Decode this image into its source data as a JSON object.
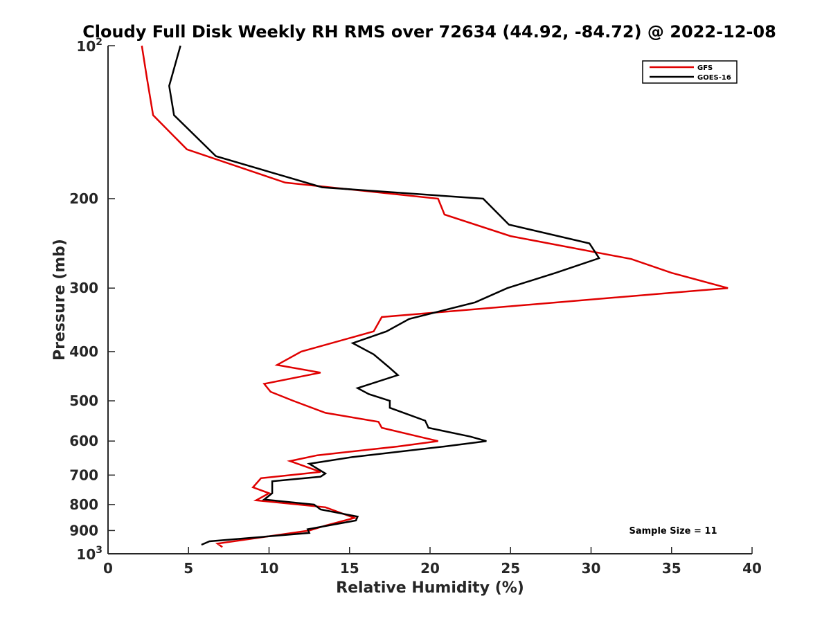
{
  "chart_data": {
    "type": "line",
    "title": "Cloudy Full Disk Weekly RH RMS over 72634 (44.92, -84.72) @ 2022-12-08",
    "xlabel": "Relative Humidity (%)",
    "ylabel": "Pressure (mb)",
    "xlim": [
      0,
      40
    ],
    "ylim": [
      100,
      1000
    ],
    "y_scale": "log",
    "y_reversed": true,
    "x_ticks": [
      "0",
      "5",
      "10",
      "15",
      "20",
      "25",
      "30",
      "35",
      "40"
    ],
    "y_ticks": [
      {
        "value": 100,
        "base": "10",
        "exp": "2"
      },
      {
        "value": 200,
        "label": "200"
      },
      {
        "value": 300,
        "label": "300"
      },
      {
        "value": 400,
        "label": "400"
      },
      {
        "value": 500,
        "label": "500"
      },
      {
        "value": 600,
        "label": "600"
      },
      {
        "value": 700,
        "label": "700"
      },
      {
        "value": 800,
        "label": "800"
      },
      {
        "value": 900,
        "label": "900"
      },
      {
        "value": 1000,
        "base": "10",
        "exp": "3"
      }
    ],
    "grid": false,
    "legend_position": "top-right",
    "annotation": "Sample Size = 11",
    "series": [
      {
        "name": "GFS",
        "color": "#e00000",
        "x": [
          2.1,
          2.4,
          2.8,
          4.9,
          11.0,
          20.5,
          20.9,
          25.0,
          32.5,
          35.0,
          38.5,
          17.0,
          16.5,
          12.0,
          10.5,
          13.2,
          9.7,
          10.1,
          11.5,
          13.5,
          16.8,
          17.0,
          19.5,
          20.5,
          18.0,
          13.0,
          11.3,
          13.2,
          9.5,
          9.0,
          10.0,
          9.2,
          13.5,
          15.3,
          13.5,
          12.5,
          6.8,
          7.1
        ],
        "y": [
          100,
          115,
          137,
          160,
          186,
          200,
          215,
          237,
          263,
          280,
          300,
          342,
          365,
          400,
          425,
          440,
          463,
          480,
          500,
          528,
          550,
          565,
          590,
          600,
          615,
          640,
          657,
          690,
          710,
          740,
          760,
          785,
          810,
          850,
          880,
          900,
          955,
          970
        ]
      },
      {
        "name": "GOES-16",
        "color": "#000000",
        "x": [
          4.5,
          3.8,
          4.1,
          6.7,
          13.3,
          23.3,
          24.9,
          29.9,
          30.5,
          27.8,
          24.8,
          22.8,
          18.7,
          17.3,
          15.2,
          16.5,
          17.4,
          18.0,
          15.5,
          16.2,
          17.5,
          17.5,
          19.7,
          19.9,
          22.5,
          23.5,
          20.9,
          15.2,
          12.5,
          13.5,
          13.2,
          10.2,
          10.2,
          9.7,
          12.8,
          13.2,
          15.5,
          15.4,
          12.4,
          12.5,
          6.3,
          5.8
        ],
        "y": [
          100,
          120,
          137,
          165,
          190,
          200,
          225,
          245,
          262,
          280,
          300,
          320,
          345,
          365,
          385,
          405,
          428,
          445,
          472,
          485,
          500,
          516,
          547,
          565,
          588,
          600,
          615,
          645,
          665,
          695,
          705,
          720,
          760,
          782,
          800,
          818,
          845,
          860,
          895,
          910,
          945,
          960
        ]
      }
    ]
  }
}
